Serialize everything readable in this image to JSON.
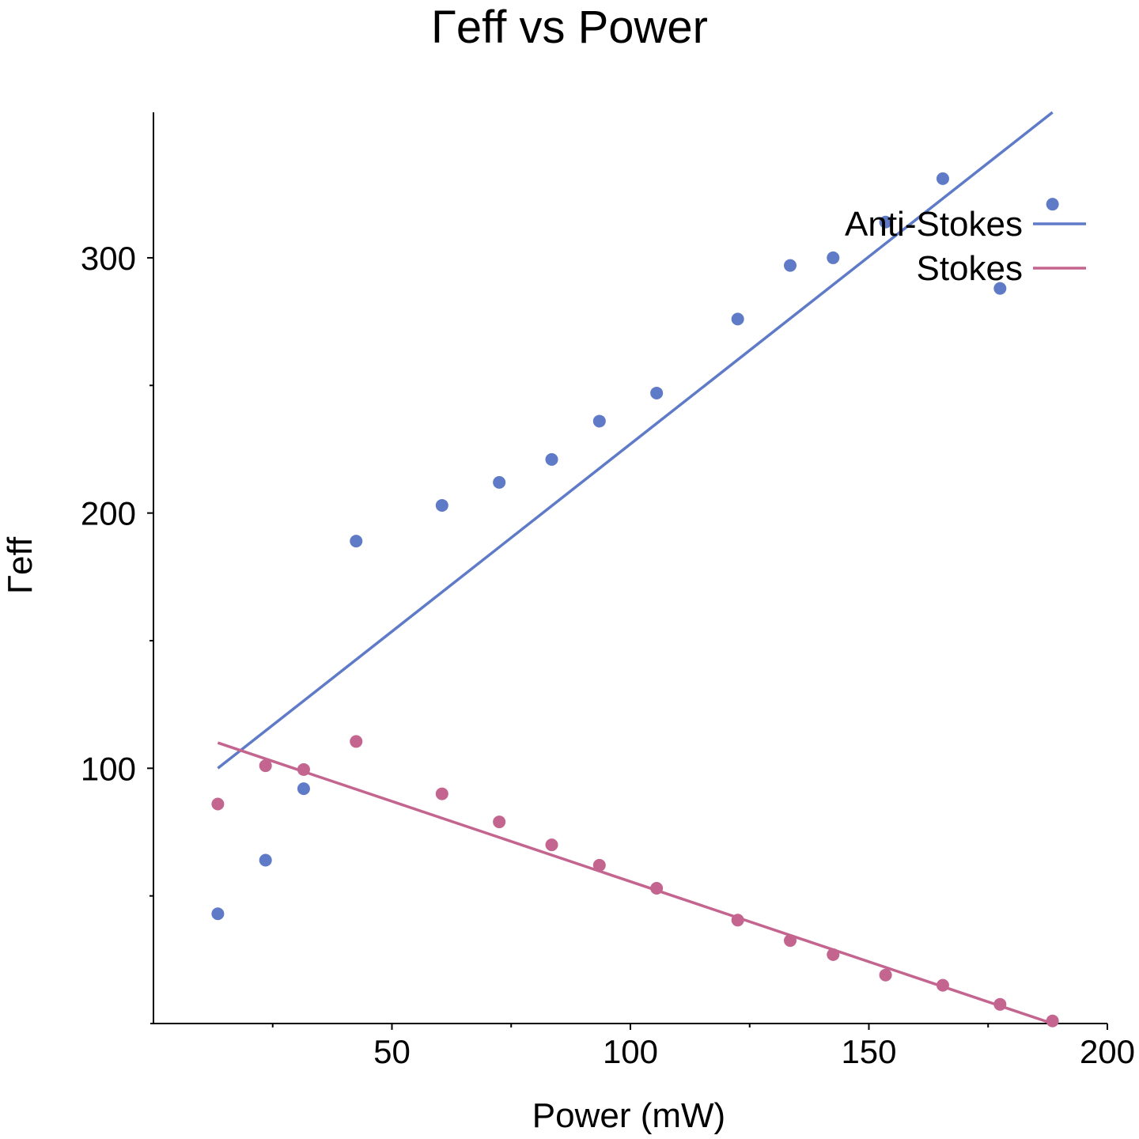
{
  "chart_data": {
    "type": "scatter",
    "title": "Γeff vs Power",
    "xlabel": "Power (mW)",
    "ylabel": "Γeff",
    "xlim": [
      0,
      200
    ],
    "ylim": [
      0,
      357
    ],
    "x_ticks": [
      50,
      100,
      150,
      200
    ],
    "x_minor_ticks": [
      25,
      75,
      125,
      175
    ],
    "y_ticks": [
      100,
      200,
      300
    ],
    "y_minor_ticks": [
      50,
      150,
      250
    ],
    "grid": false,
    "legend_position": "top-right",
    "series": [
      {
        "name": "Anti-Stokes",
        "color": "#5f7bc8",
        "x": [
          13.5,
          23.5,
          31.5,
          42.5,
          60.5,
          72.5,
          83.5,
          93.5,
          105.5,
          122.5,
          133.5,
          142.5,
          153.5,
          165.5,
          177.5,
          188.5
        ],
        "y": [
          43,
          64,
          92,
          189,
          203,
          212,
          221,
          236,
          247,
          276,
          297,
          300,
          314,
          331,
          288,
          321
        ],
        "fit": {
          "x": [
            13.5,
            188.5
          ],
          "y": [
            100,
            357
          ]
        }
      },
      {
        "name": "Stokes",
        "color": "#c46590",
        "x": [
          13.5,
          23.5,
          31.5,
          42.5,
          60.5,
          72.5,
          83.5,
          93.5,
          105.5,
          122.5,
          133.5,
          142.5,
          153.5,
          165.5,
          177.5,
          188.5
        ],
        "y": [
          86,
          101,
          99.5,
          110.5,
          90,
          79,
          70,
          62,
          53,
          40.5,
          32.5,
          27,
          19,
          15,
          7.5,
          1
        ],
        "fit": {
          "x": [
            13.5,
            188.5
          ],
          "y": [
            110,
            0
          ]
        }
      }
    ]
  }
}
